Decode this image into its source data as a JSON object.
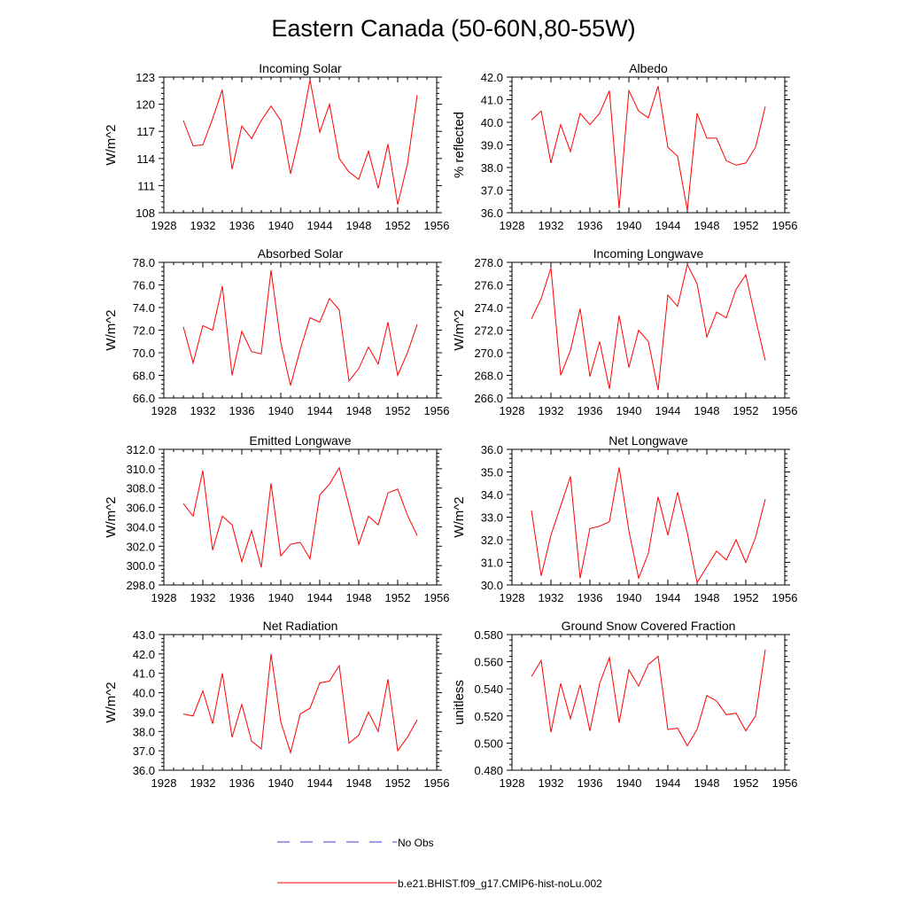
{
  "page_title": "Eastern Canada (50-60N,80-55W)",
  "colors": {
    "model_line": "#ff0000",
    "obs_line": "#3b3bd6",
    "axis": "#000000",
    "background": "#ffffff"
  },
  "legend": {
    "obs_label": "No Obs",
    "model_label": "b.e21.BHIST.f09_g17.CMIP6-hist-noLu.002"
  },
  "chart_data": [
    {
      "type": "line",
      "title": "Incoming Solar",
      "ylabel": "W/m^2",
      "xlim": [
        1928,
        1956
      ],
      "ylim": [
        108,
        123
      ],
      "x_ticks": [
        1928,
        1932,
        1936,
        1940,
        1944,
        1948,
        1952,
        1956
      ],
      "y_ticks": [
        "108",
        "111",
        "114",
        "117",
        "120",
        "123"
      ],
      "grid": false,
      "series": [
        {
          "color": "#ff0000",
          "x": [
            1930,
            1931,
            1932,
            1933,
            1934,
            1935,
            1936,
            1937,
            1938,
            1939,
            1940,
            1941,
            1942,
            1943,
            1944,
            1945,
            1946,
            1947,
            1948,
            1949,
            1950,
            1951,
            1952,
            1953,
            1954
          ],
          "values": [
            118.2,
            115.4,
            115.5,
            118.4,
            121.6,
            112.8,
            117.6,
            116.2,
            118.2,
            119.8,
            118.2,
            112.3,
            116.9,
            122.7,
            116.9,
            120.0,
            114.0,
            112.5,
            111.7,
            114.8,
            110.7,
            115.6,
            108.9,
            113.4,
            121.0
          ]
        }
      ]
    },
    {
      "type": "line",
      "title": "Albedo",
      "ylabel": "% reflected",
      "xlim": [
        1928,
        1956
      ],
      "ylim": [
        36.0,
        42.0
      ],
      "x_ticks": [
        1928,
        1932,
        1936,
        1940,
        1944,
        1948,
        1952,
        1956
      ],
      "y_ticks": [
        "36.0",
        "37.0",
        "38.0",
        "39.0",
        "40.0",
        "41.0",
        "42.0"
      ],
      "grid": false,
      "series": [
        {
          "color": "#ff0000",
          "x": [
            1930,
            1931,
            1932,
            1933,
            1934,
            1935,
            1936,
            1937,
            1938,
            1939,
            1940,
            1941,
            1942,
            1943,
            1944,
            1945,
            1946,
            1947,
            1948,
            1949,
            1950,
            1951,
            1952,
            1953,
            1954
          ],
          "values": [
            40.1,
            40.5,
            38.2,
            39.9,
            38.7,
            40.4,
            39.9,
            40.4,
            41.4,
            36.2,
            41.4,
            40.5,
            40.2,
            41.6,
            38.9,
            38.5,
            36.1,
            40.4,
            39.3,
            39.3,
            38.3,
            38.1,
            38.2,
            38.9,
            40.7
          ]
        }
      ]
    },
    {
      "type": "line",
      "title": "Absorbed Solar",
      "ylabel": "W/m^2",
      "xlim": [
        1928,
        1956
      ],
      "ylim": [
        66.0,
        78.0
      ],
      "x_ticks": [
        1928,
        1932,
        1936,
        1940,
        1944,
        1948,
        1952,
        1956
      ],
      "y_ticks": [
        "66.0",
        "68.0",
        "70.0",
        "72.0",
        "74.0",
        "76.0",
        "78.0"
      ],
      "grid": false,
      "series": [
        {
          "color": "#ff0000",
          "x": [
            1930,
            1931,
            1932,
            1933,
            1934,
            1935,
            1936,
            1937,
            1938,
            1939,
            1940,
            1941,
            1942,
            1943,
            1944,
            1945,
            1946,
            1947,
            1948,
            1949,
            1950,
            1951,
            1952,
            1953,
            1954
          ],
          "values": [
            72.3,
            69.1,
            72.4,
            72.0,
            75.9,
            68.0,
            71.9,
            70.1,
            69.9,
            77.3,
            70.9,
            67.1,
            70.3,
            73.1,
            72.7,
            74.8,
            73.8,
            67.5,
            68.6,
            70.5,
            69.0,
            72.7,
            68.0,
            70.0,
            72.5
          ]
        }
      ]
    },
    {
      "type": "line",
      "title": "Incoming Longwave",
      "ylabel": "W/m^2",
      "xlim": [
        1928,
        1956
      ],
      "ylim": [
        266.0,
        278.0
      ],
      "x_ticks": [
        1928,
        1932,
        1936,
        1940,
        1944,
        1948,
        1952,
        1956
      ],
      "y_ticks": [
        "266.0",
        "268.0",
        "270.0",
        "272.0",
        "274.0",
        "276.0",
        "278.0"
      ],
      "grid": false,
      "series": [
        {
          "color": "#ff0000",
          "x": [
            1930,
            1931,
            1932,
            1933,
            1934,
            1935,
            1936,
            1937,
            1938,
            1939,
            1940,
            1941,
            1942,
            1943,
            1944,
            1945,
            1946,
            1947,
            1948,
            1949,
            1950,
            1951,
            1952,
            1953,
            1954
          ],
          "values": [
            273.0,
            274.8,
            277.5,
            268.0,
            270.2,
            273.9,
            267.9,
            271.0,
            266.8,
            273.3,
            268.7,
            272.0,
            271.0,
            266.7,
            275.1,
            274.1,
            277.8,
            276.1,
            271.4,
            273.6,
            273.1,
            275.6,
            276.9,
            273.0,
            269.3
          ]
        }
      ]
    },
    {
      "type": "line",
      "title": "Emitted Longwave",
      "ylabel": "W/m^2",
      "xlim": [
        1928,
        1956
      ],
      "ylim": [
        298.0,
        312.0
      ],
      "x_ticks": [
        1928,
        1932,
        1936,
        1940,
        1944,
        1948,
        1952,
        1956
      ],
      "y_ticks": [
        "298.0",
        "300.0",
        "302.0",
        "304.0",
        "306.0",
        "308.0",
        "310.0",
        "312.0"
      ],
      "grid": false,
      "series": [
        {
          "color": "#ff0000",
          "x": [
            1930,
            1931,
            1932,
            1933,
            1934,
            1935,
            1936,
            1937,
            1938,
            1939,
            1940,
            1941,
            1942,
            1943,
            1944,
            1945,
            1946,
            1947,
            1948,
            1949,
            1950,
            1951,
            1952,
            1953,
            1954
          ],
          "values": [
            306.4,
            305.1,
            309.8,
            301.6,
            305.1,
            304.2,
            300.4,
            303.6,
            299.8,
            308.5,
            301.0,
            302.2,
            302.4,
            300.7,
            307.3,
            308.4,
            310.1,
            306.2,
            302.2,
            305.1,
            304.2,
            307.5,
            307.9,
            305.2,
            303.1
          ]
        }
      ]
    },
    {
      "type": "line",
      "title": "Net Longwave",
      "ylabel": "W/m^2",
      "xlim": [
        1928,
        1956
      ],
      "ylim": [
        30.0,
        36.0
      ],
      "x_ticks": [
        1928,
        1932,
        1936,
        1940,
        1944,
        1948,
        1952,
        1956
      ],
      "y_ticks": [
        "30.0",
        "31.0",
        "32.0",
        "33.0",
        "34.0",
        "35.0",
        "36.0"
      ],
      "grid": false,
      "series": [
        {
          "color": "#ff0000",
          "x": [
            1930,
            1931,
            1932,
            1933,
            1934,
            1935,
            1936,
            1937,
            1938,
            1939,
            1940,
            1941,
            1942,
            1943,
            1944,
            1945,
            1946,
            1947,
            1948,
            1949,
            1950,
            1951,
            1952,
            1953,
            1954
          ],
          "values": [
            33.3,
            30.4,
            32.2,
            33.5,
            34.8,
            30.3,
            32.5,
            32.6,
            32.8,
            35.2,
            32.4,
            30.3,
            31.4,
            33.9,
            32.2,
            34.1,
            32.3,
            30.1,
            30.8,
            31.5,
            31.1,
            32.0,
            31.0,
            32.1,
            33.8
          ]
        }
      ]
    },
    {
      "type": "line",
      "title": "Net Radiation",
      "ylabel": "W/m^2",
      "xlim": [
        1928,
        1956
      ],
      "ylim": [
        36.0,
        43.0
      ],
      "x_ticks": [
        1928,
        1932,
        1936,
        1940,
        1944,
        1948,
        1952,
        1956
      ],
      "y_ticks": [
        "36.0",
        "37.0",
        "38.0",
        "39.0",
        "40.0",
        "41.0",
        "42.0",
        "43.0"
      ],
      "grid": false,
      "series": [
        {
          "color": "#ff0000",
          "x": [
            1930,
            1931,
            1932,
            1933,
            1934,
            1935,
            1936,
            1937,
            1938,
            1939,
            1940,
            1941,
            1942,
            1943,
            1944,
            1945,
            1946,
            1947,
            1948,
            1949,
            1950,
            1951,
            1952,
            1953,
            1954
          ],
          "values": [
            38.9,
            38.8,
            40.1,
            38.4,
            41.0,
            37.7,
            39.4,
            37.5,
            37.1,
            42.0,
            38.5,
            36.9,
            38.9,
            39.2,
            40.5,
            40.6,
            41.4,
            37.4,
            37.8,
            39.0,
            38.0,
            40.7,
            37.0,
            37.7,
            38.6
          ]
        }
      ]
    },
    {
      "type": "line",
      "title": "Ground Snow Covered Fraction",
      "ylabel": "unitless",
      "xlim": [
        1928,
        1956
      ],
      "ylim": [
        0.48,
        0.58
      ],
      "x_ticks": [
        1928,
        1932,
        1936,
        1940,
        1944,
        1948,
        1952,
        1956
      ],
      "y_ticks": [
        "0.480",
        "0.500",
        "0.520",
        "0.540",
        "0.560",
        "0.580"
      ],
      "grid": false,
      "series": [
        {
          "color": "#ff0000",
          "x": [
            1930,
            1931,
            1932,
            1933,
            1934,
            1935,
            1936,
            1937,
            1938,
            1939,
            1940,
            1941,
            1942,
            1943,
            1944,
            1945,
            1946,
            1947,
            1948,
            1949,
            1950,
            1951,
            1952,
            1953,
            1954
          ],
          "values": [
            0.549,
            0.561,
            0.508,
            0.544,
            0.518,
            0.543,
            0.509,
            0.544,
            0.563,
            0.515,
            0.554,
            0.542,
            0.558,
            0.564,
            0.51,
            0.511,
            0.498,
            0.51,
            0.535,
            0.531,
            0.521,
            0.522,
            0.509,
            0.52,
            0.569
          ]
        }
      ]
    }
  ]
}
